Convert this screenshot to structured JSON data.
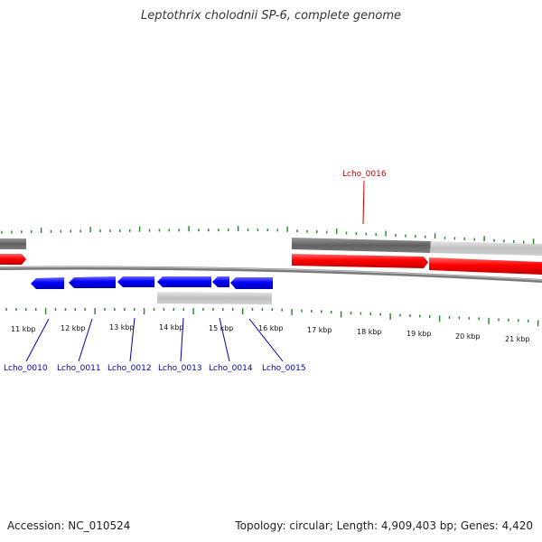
{
  "title": "Leptothrix cholodnii SP-6, complete genome",
  "footer": {
    "accession": "Accession: NC_010524",
    "summary": "Topology: circular; Length: 4,909,403 bp; Genes: 4,420"
  },
  "colors": {
    "forward_gene": "#ff0000",
    "reverse_gene": "#0000ff",
    "forward_label": "#cc0000",
    "reverse_label": "#0000aa",
    "tick": "#2e8b2e",
    "backbone": "#888888",
    "feature_dark": "#6e6e6e",
    "feature_light": "#c4c4c4"
  },
  "ruler_labels": [
    "11 kbp",
    "12 kbp",
    "13 kbp",
    "14 kbp",
    "15 kbp",
    "16 kbp",
    "17 kbp",
    "18 kbp",
    "19 kbp",
    "20 kbp",
    "21 kbp"
  ],
  "gene_labels": {
    "forward": [
      "Lcho_0016"
    ],
    "reverse": [
      "Lcho_0010",
      "Lcho_0011",
      "Lcho_0012",
      "Lcho_0013",
      "Lcho_0014",
      "Lcho_0015"
    ]
  }
}
